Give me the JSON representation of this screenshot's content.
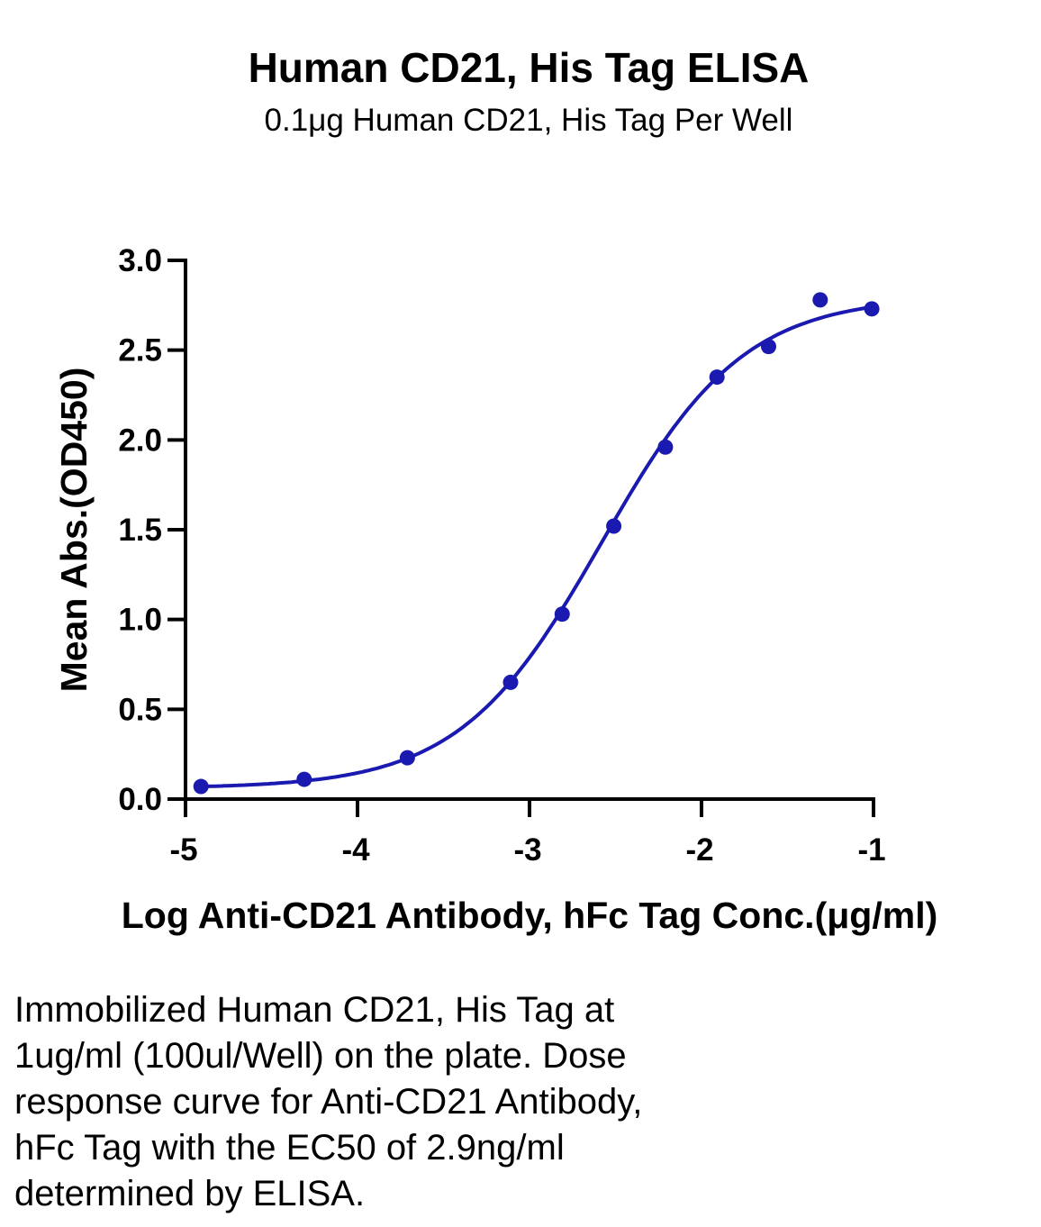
{
  "chart_data": {
    "type": "scatter",
    "title": "Human CD21, His Tag ELISA",
    "subtitle": "0.1μg Human CD21, His Tag Per Well",
    "xlabel": "Log Anti-CD21 Antibody, hFc Tag Conc.(μg/ml)",
    "ylabel": "Mean Abs.(OD450)",
    "xlim": [
      -5,
      -1
    ],
    "ylim": [
      0,
      3.0
    ],
    "x_ticks": [
      "-5",
      "-4",
      "-3",
      "-2",
      "-1"
    ],
    "y_ticks": [
      "0.0",
      "0.5",
      "1.0",
      "1.5",
      "2.0",
      "2.5",
      "3.0"
    ],
    "grid": false,
    "series": [
      {
        "x": [
          -4.91,
          -4.31,
          -3.71,
          -3.11,
          -2.81,
          -2.51,
          -2.21,
          -1.91,
          -1.61,
          -1.31,
          -1.01
        ],
        "y": [
          0.07,
          0.11,
          0.23,
          0.65,
          1.03,
          1.52,
          1.96,
          2.35,
          2.52,
          2.78,
          2.73
        ],
        "fit": "4PL curve"
      }
    ],
    "colors": {
      "series": "#1a1ab0",
      "axis": "#000000"
    }
  },
  "caption": {
    "lines": [
      "Immobilized Human CD21, His Tag at",
      "1ug/ml (100ul/Well) on the plate. Dose",
      "response curve for Anti-CD21 Antibody,",
      "hFc Tag with the EC50 of 2.9ng/ml",
      "determined by ELISA."
    ]
  }
}
